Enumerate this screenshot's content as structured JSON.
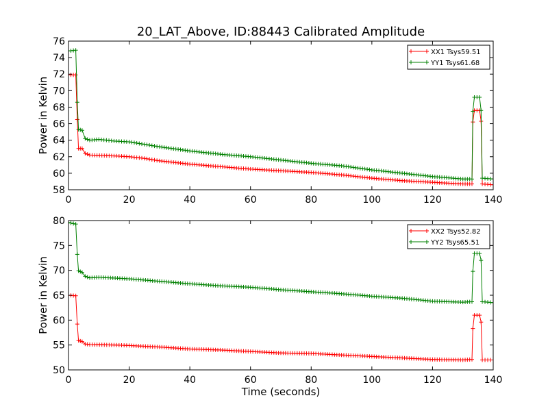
{
  "title": "20_LAT_Above, ID:88443 Calibrated Amplitude",
  "chart_data": [
    {
      "type": "line",
      "title": "20_LAT_Above, ID:88443 Calibrated Amplitude",
      "xlabel": "",
      "ylabel": "Power in Kelvin",
      "xlim": [
        0,
        140
      ],
      "ylim": [
        58,
        76
      ],
      "xticks": [
        "0",
        "20",
        "40",
        "60",
        "80",
        "100",
        "120",
        "140"
      ],
      "yticks": [
        "58",
        "60",
        "62",
        "64",
        "66",
        "68",
        "70",
        "72",
        "74",
        "76"
      ],
      "grid": false,
      "legend_position": "top-right",
      "marker": "+",
      "series": [
        {
          "name": "XX1 Tsys59.51",
          "color": "#ff0000",
          "points": [
            [
              0,
              71.9
            ],
            [
              2.4,
              71.9
            ],
            [
              2.9,
              66.5
            ],
            [
              3.3,
              63.0
            ],
            [
              4.5,
              63.0
            ],
            [
              5.5,
              62.4
            ],
            [
              7,
              62.2
            ],
            [
              15,
              62.1
            ],
            [
              20,
              62.0
            ],
            [
              25,
              61.8
            ],
            [
              30,
              61.5
            ],
            [
              40,
              61.1
            ],
            [
              50,
              60.8
            ],
            [
              60,
              60.5
            ],
            [
              70,
              60.3
            ],
            [
              80,
              60.1
            ],
            [
              90,
              59.8
            ],
            [
              100,
              59.4
            ],
            [
              110,
              59.1
            ],
            [
              120,
              58.9
            ],
            [
              130,
              58.7
            ],
            [
              133,
              58.7
            ],
            [
              133.3,
              66.2
            ],
            [
              133.8,
              67.6
            ],
            [
              135.5,
              67.6
            ],
            [
              136,
              66.3
            ],
            [
              136.4,
              58.7
            ],
            [
              140,
              58.6
            ]
          ]
        },
        {
          "name": "YY1 Tsys61.68",
          "color": "#008000",
          "points": [
            [
              0,
              74.8
            ],
            [
              2.4,
              74.9
            ],
            [
              2.9,
              68.6
            ],
            [
              3.3,
              65.3
            ],
            [
              4.5,
              65.2
            ],
            [
              5.5,
              64.2
            ],
            [
              7,
              64.0
            ],
            [
              10,
              64.1
            ],
            [
              15,
              63.9
            ],
            [
              20,
              63.8
            ],
            [
              25,
              63.5
            ],
            [
              30,
              63.2
            ],
            [
              40,
              62.7
            ],
            [
              50,
              62.3
            ],
            [
              60,
              62.0
            ],
            [
              70,
              61.6
            ],
            [
              80,
              61.2
            ],
            [
              90,
              60.9
            ],
            [
              100,
              60.4
            ],
            [
              110,
              60.0
            ],
            [
              120,
              59.6
            ],
            [
              130,
              59.3
            ],
            [
              133,
              59.3
            ],
            [
              133.3,
              67.5
            ],
            [
              133.8,
              69.2
            ],
            [
              135.5,
              69.2
            ],
            [
              136,
              67.6
            ],
            [
              136.4,
              59.4
            ],
            [
              140,
              59.3
            ]
          ]
        }
      ]
    },
    {
      "type": "line",
      "title": "",
      "xlabel": "Time (seconds)",
      "ylabel": "Power in Kelvin",
      "xlim": [
        0,
        140
      ],
      "ylim": [
        50,
        80
      ],
      "xticks": [
        "0",
        "20",
        "40",
        "60",
        "80",
        "100",
        "120",
        "140"
      ],
      "yticks": [
        "50",
        "55",
        "60",
        "65",
        "70",
        "75",
        "80"
      ],
      "grid": false,
      "legend_position": "top-right",
      "marker": "+",
      "series": [
        {
          "name": "XX2 Tsys52.82",
          "color": "#ff0000",
          "points": [
            [
              0,
              65.0
            ],
            [
              2.4,
              64.9
            ],
            [
              2.9,
              59.2
            ],
            [
              3.3,
              55.9
            ],
            [
              4.5,
              55.7
            ],
            [
              5.5,
              55.2
            ],
            [
              7,
              55.1
            ],
            [
              15,
              55.0
            ],
            [
              20,
              54.9
            ],
            [
              30,
              54.6
            ],
            [
              40,
              54.2
            ],
            [
              50,
              54.0
            ],
            [
              60,
              53.7
            ],
            [
              70,
              53.4
            ],
            [
              80,
              53.3
            ],
            [
              90,
              53.0
            ],
            [
              100,
              52.7
            ],
            [
              110,
              52.4
            ],
            [
              120,
              52.1
            ],
            [
              130,
              52.0
            ],
            [
              133,
              52.1
            ],
            [
              133.3,
              58.3
            ],
            [
              133.8,
              61.0
            ],
            [
              135.5,
              61.0
            ],
            [
              136,
              59.6
            ],
            [
              136.4,
              52.0
            ],
            [
              140,
              52.0
            ]
          ]
        },
        {
          "name": "YY2 Tsys65.51",
          "color": "#008000",
          "points": [
            [
              0,
              79.6
            ],
            [
              2.4,
              79.3
            ],
            [
              2.9,
              73.2
            ],
            [
              3.3,
              69.9
            ],
            [
              4.5,
              69.6
            ],
            [
              5.5,
              68.8
            ],
            [
              7,
              68.5
            ],
            [
              10,
              68.6
            ],
            [
              20,
              68.3
            ],
            [
              30,
              67.8
            ],
            [
              40,
              67.3
            ],
            [
              50,
              66.9
            ],
            [
              60,
              66.6
            ],
            [
              70,
              66.1
            ],
            [
              80,
              65.7
            ],
            [
              90,
              65.3
            ],
            [
              100,
              64.8
            ],
            [
              110,
              64.4
            ],
            [
              120,
              63.8
            ],
            [
              130,
              63.6
            ],
            [
              133,
              63.7
            ],
            [
              133.3,
              69.8
            ],
            [
              133.8,
              73.4
            ],
            [
              135.5,
              73.4
            ],
            [
              136,
              72.0
            ],
            [
              136.4,
              63.7
            ],
            [
              140,
              63.5
            ]
          ]
        }
      ]
    }
  ]
}
